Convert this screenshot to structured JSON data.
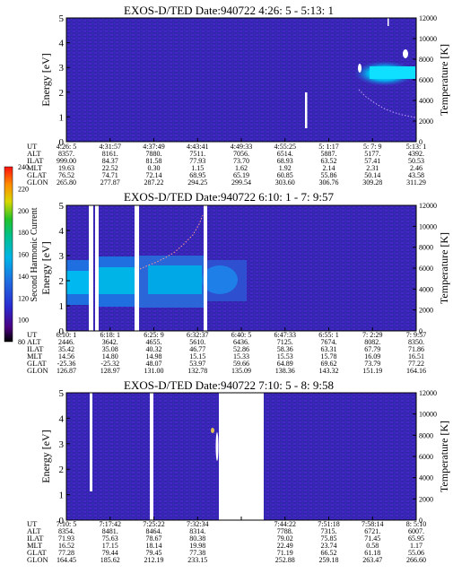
{
  "chart_data": [
    {
      "type": "heatmap",
      "title": "EXOS-D/TED   Date:940722  4:26: 5 - 5:13: 1",
      "ylabel": "Energy [eV]",
      "ylim": [
        0,
        5
      ],
      "yticks": [
        "0",
        "1",
        "2",
        "3",
        "4",
        "5"
      ],
      "y2label": "Temperature [K]",
      "y2lim": [
        0,
        12000
      ],
      "y2ticks": [
        "0",
        "2000",
        "4000",
        "6000",
        "8000",
        "10000",
        "12000"
      ],
      "table": {
        "rows": [
          {
            "label": "UT",
            "values": [
              "4:26: 5",
              "4:31:57",
              "4:37:49",
              "4:43:41",
              "4:49:33",
              "4:55:25",
              "5: 1:17",
              "5: 7: 9",
              "5:13: 1"
            ]
          },
          {
            "label": "ALT",
            "values": [
              "8357.",
              "8161.",
              "7880.",
              "7511.",
              "7056.",
              "6514.",
              "5887.",
              "5177.",
              "4392."
            ]
          },
          {
            "label": "ILAT",
            "values": [
              "999.00",
              "84.37",
              "81.58",
              "77.93",
              "73.70",
              "68.93",
              "63.52",
              "57.41",
              "50.53"
            ]
          },
          {
            "label": "MLT",
            "values": [
              "19.63",
              "22.52",
              "0.30",
              "1.15",
              "1.62",
              "1.92",
              "2.14",
              "2.31",
              "2.46"
            ]
          },
          {
            "label": "GLAT",
            "values": [
              "76.52",
              "74.71",
              "72.14",
              "68.95",
              "65.19",
              "60.85",
              "55.86",
              "50.14",
              "43.58"
            ]
          },
          {
            "label": "GLON",
            "values": [
              "265.80",
              "277.87",
              "287.22",
              "294.25",
              "299.54",
              "303.60",
              "306.76",
              "309.28",
              "311.29"
            ]
          }
        ]
      }
    },
    {
      "type": "heatmap",
      "title": "EXOS-D/TED   Date:940722  6:10: 1 - 7: 9:57",
      "ylabel": "Energy [eV]",
      "ylim": [
        0,
        5
      ],
      "yticks": [
        "0",
        "1",
        "2",
        "3",
        "4",
        "5"
      ],
      "y2label": "Temperature [K]",
      "y2lim": [
        0,
        12000
      ],
      "y2ticks": [
        "0",
        "2000",
        "4000",
        "6000",
        "8000",
        "10000",
        "12000"
      ],
      "table": {
        "rows": [
          {
            "label": "UT",
            "values": [
              "6:10: 1",
              "6:18: 1",
              "6:25: 9",
              "6:32:37",
              "6:40: 5",
              "6:47:33",
              "6:55: 1",
              "7: 2:29",
              "7: 9:57"
            ]
          },
          {
            "label": "ALT",
            "values": [
              "2446.",
              "3642.",
              "4655.",
              "5610.",
              "6436.",
              "7125.",
              "7674.",
              "8082.",
              "8350."
            ]
          },
          {
            "label": "ILAT",
            "values": [
              "35.42",
              "35.08",
              "40.32",
              "46.77",
              "52.86",
              "58.36",
              "63.31",
              "67.79",
              "71.86"
            ]
          },
          {
            "label": "MLT",
            "values": [
              "14.56",
              "14.80",
              "14.98",
              "15.15",
              "15.33",
              "15.53",
              "15.78",
              "16.09",
              "16.51"
            ]
          },
          {
            "label": "GLAT",
            "values": [
              "-25.36",
              "-25.32",
              "48.07",
              "53.97",
              "59.66",
              "64.89",
              "69.62",
              "73.79",
              "77.22"
            ]
          },
          {
            "label": "GLON",
            "values": [
              "126.87",
              "128.97",
              "131.00",
              "132.78",
              "135.09",
              "138.36",
              "143.32",
              "151.19",
              "164.16"
            ]
          }
        ]
      },
      "colorbar": {
        "label": "Second Harmonic Current",
        "ticks": [
          "80",
          "100",
          "120",
          "140",
          "160",
          "180",
          "200",
          "220",
          "240"
        ],
        "range": [
          80,
          240
        ]
      }
    },
    {
      "type": "heatmap",
      "title": "EXOS-D/TED   Date:940722  7:10: 5 - 8: 9:58",
      "ylabel": "Energy [eV]",
      "ylim": [
        0,
        5
      ],
      "yticks": [
        "0",
        "1",
        "2",
        "3",
        "4",
        "5"
      ],
      "y2label": "Temperature [K]",
      "y2lim": [
        0,
        12000
      ],
      "y2ticks": [
        "0",
        "2000",
        "4000",
        "6000",
        "8000",
        "10000",
        "12000"
      ],
      "table": {
        "rows": [
          {
            "label": "UT",
            "values": [
              "7:10: 5",
              "7:17:42",
              "7:25:22",
              "7:32:34",
              "",
              "7:44:22",
              "7:51:18",
              "7:58:14",
              "8: 5:10"
            ]
          },
          {
            "label": "ALT",
            "values": [
              "8354.",
              "8481.",
              "8464.",
              "8314.",
              "",
              "7788.",
              "7315.",
              "6721.",
              "6007."
            ]
          },
          {
            "label": "ILAT",
            "values": [
              "71.93",
              "75.63",
              "78.67",
              "80.38",
              "",
              "79.02",
              "75.85",
              "71.45",
              "65.95"
            ]
          },
          {
            "label": "MLT",
            "values": [
              "16.52",
              "17.15",
              "18.14",
              "19.98",
              "",
              "22.49",
              "23.74",
              "0.58",
              "1.17"
            ]
          },
          {
            "label": "GLAT",
            "values": [
              "77.28",
              "79.44",
              "79.45",
              "77.38",
              "",
              "71.19",
              "66.52",
              "61.18",
              "55.06"
            ]
          },
          {
            "label": "GLON",
            "values": [
              "164.45",
              "185.62",
              "212.19",
              "233.15",
              "",
              "252.88",
              "259.18",
              "263.47",
              "266.60"
            ]
          }
        ]
      }
    }
  ]
}
